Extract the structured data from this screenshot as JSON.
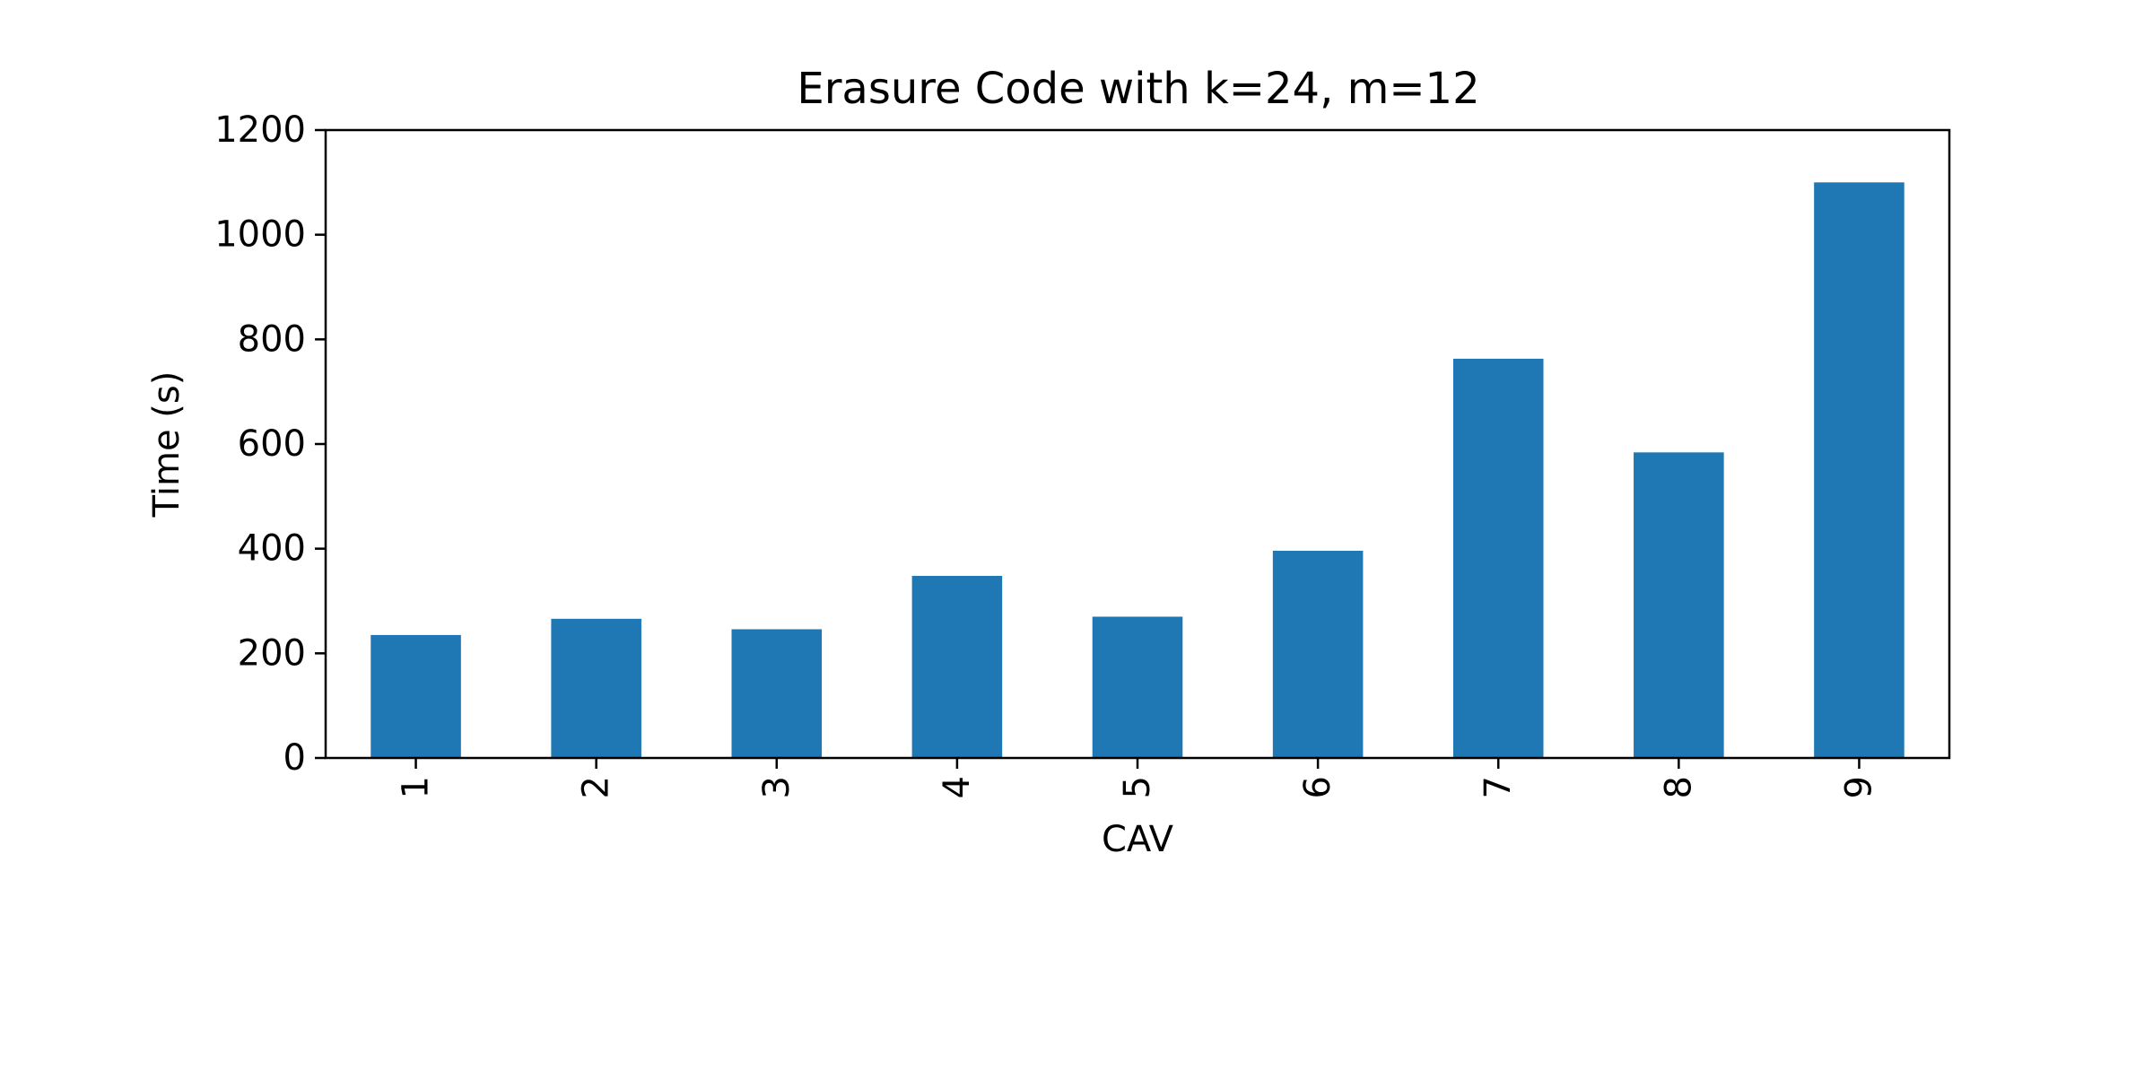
{
  "chart_data": {
    "type": "bar",
    "title": "Erasure Code with k=24, m=12",
    "xlabel": "CAV",
    "ylabel": "Time (s)",
    "categories": [
      "1",
      "2",
      "3",
      "4",
      "5",
      "6",
      "7",
      "8",
      "9"
    ],
    "values": [
      235,
      266,
      246,
      348,
      270,
      396,
      763,
      584,
      1100
    ],
    "ylim": [
      0,
      1200
    ],
    "yticks": [
      0,
      200,
      400,
      600,
      800,
      1000,
      1200
    ],
    "xtick_rotation": "vertical",
    "grid": false,
    "legend": "none",
    "colors": {
      "bar": "#1f77b4",
      "axis": "#000000",
      "background": "#ffffff"
    }
  }
}
